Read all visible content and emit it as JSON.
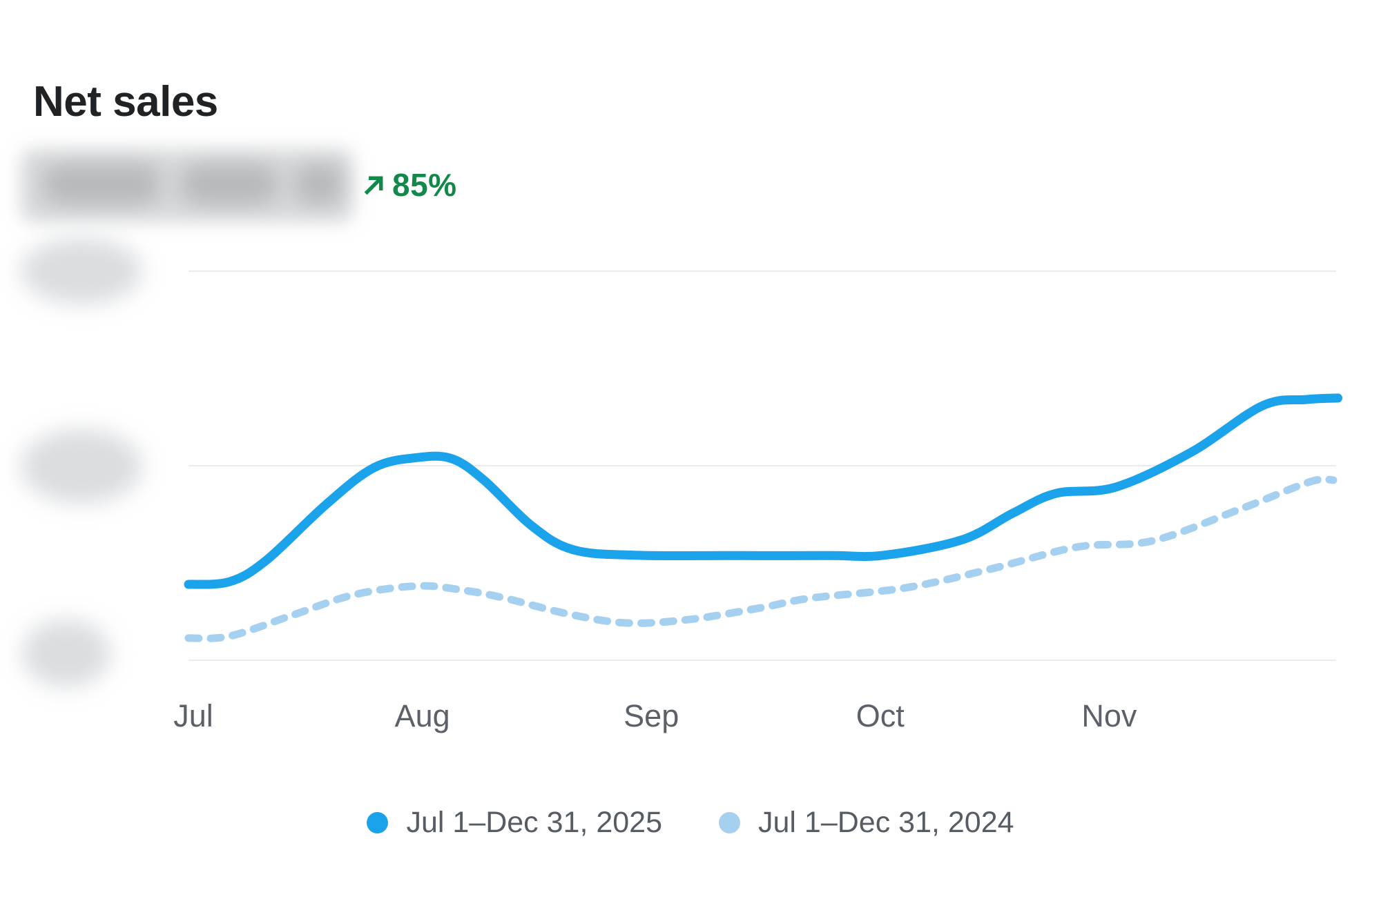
{
  "card": {
    "title": "Net sales",
    "value_redacted": true,
    "change": {
      "direction": "up",
      "percent": "85%",
      "color": "#12894a"
    }
  },
  "chart_data": {
    "type": "line",
    "title": "Net sales",
    "x_tick_labels": [
      "Jul",
      "Aug",
      "Sep",
      "Oct",
      "Nov"
    ],
    "x_unit": "months from Jul 1",
    "x_range": [
      0,
      5.02
    ],
    "y_axis": {
      "tick_labels_redacted": true,
      "gridline_values": [
        0,
        0.5,
        1
      ],
      "scale": "relative (0 = bottom gridline, 1 = top gridline)"
    },
    "grid": "horizontal",
    "legend_position": "bottom",
    "colors": {
      "current_period": "#1aa2ea",
      "previous_period": "#a6d0ef",
      "gridline": "#ececee"
    },
    "series": [
      {
        "name": "Jul 1–Dec 31, 2025",
        "style": "solid",
        "color": "#1aa2ea",
        "points": [
          [
            0,
            0.195
          ],
          [
            0.18,
            0.202
          ],
          [
            0.34,
            0.257
          ],
          [
            0.6,
            0.4
          ],
          [
            0.81,
            0.495
          ],
          [
            1.0,
            0.521
          ],
          [
            1.15,
            0.518
          ],
          [
            1.29,
            0.463
          ],
          [
            1.5,
            0.345
          ],
          [
            1.68,
            0.284
          ],
          [
            1.95,
            0.27
          ],
          [
            2.4,
            0.269
          ],
          [
            2.8,
            0.269
          ],
          [
            3.04,
            0.27
          ],
          [
            3.38,
            0.31
          ],
          [
            3.6,
            0.378
          ],
          [
            3.79,
            0.429
          ],
          [
            4.05,
            0.445
          ],
          [
            4.38,
            0.535
          ],
          [
            4.69,
            0.654
          ],
          [
            4.88,
            0.67
          ],
          [
            5.02,
            0.674
          ]
        ]
      },
      {
        "name": "Jul 1–Dec 31, 2024",
        "style": "dashed",
        "color": "#a6d0ef",
        "points": [
          [
            0,
            0.057
          ],
          [
            0.18,
            0.062
          ],
          [
            0.45,
            0.115
          ],
          [
            0.72,
            0.168
          ],
          [
            1.0,
            0.191
          ],
          [
            1.2,
            0.18
          ],
          [
            1.38,
            0.16
          ],
          [
            1.65,
            0.12
          ],
          [
            1.91,
            0.096
          ],
          [
            2.19,
            0.105
          ],
          [
            2.5,
            0.135
          ],
          [
            2.72,
            0.16
          ],
          [
            3.13,
            0.186
          ],
          [
            3.5,
            0.234
          ],
          [
            3.88,
            0.291
          ],
          [
            4.21,
            0.307
          ],
          [
            4.6,
            0.39
          ],
          [
            4.9,
            0.459
          ],
          [
            5.0,
            0.463
          ]
        ]
      }
    ]
  },
  "legend": {
    "items": [
      {
        "label": "Jul 1–Dec 31, 2025",
        "color": "#1aa2ea"
      },
      {
        "label": "Jul 1–Dec 31, 2024",
        "color": "#a6d0ef"
      }
    ]
  }
}
